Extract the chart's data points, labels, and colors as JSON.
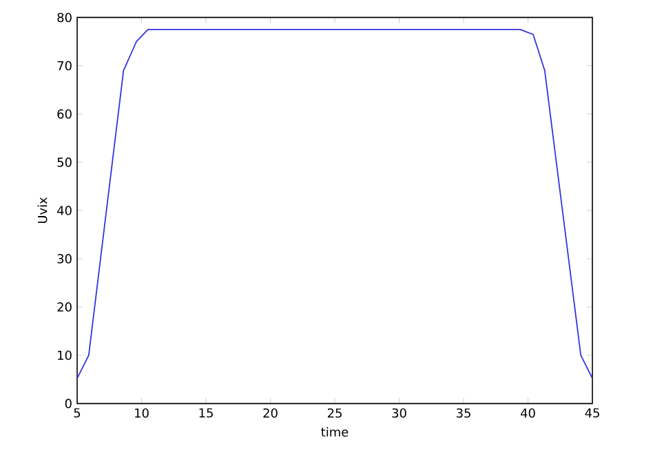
{
  "chart_data": {
    "type": "line",
    "xlabel": "time",
    "ylabel": "Uvix",
    "x": [
      5,
      5.9,
      8.6,
      9.6,
      10.5,
      39.4,
      40.4,
      41.3,
      44.1,
      45
    ],
    "series": [
      {
        "color": "#3333dd",
        "values": [
          5.2,
          10,
          69,
          75,
          77.5,
          77.5,
          76.5,
          69,
          10,
          5.2
        ]
      }
    ],
    "xlim": [
      5,
      45
    ],
    "ylim": [
      0,
      80
    ],
    "xticks": [
      5,
      10,
      15,
      20,
      25,
      30,
      35,
      40,
      45
    ],
    "yticks": [
      0,
      10,
      20,
      30,
      40,
      50,
      60,
      70,
      80
    ],
    "grid": false,
    "legend": false,
    "marker": "none",
    "line_style": "solid"
  }
}
